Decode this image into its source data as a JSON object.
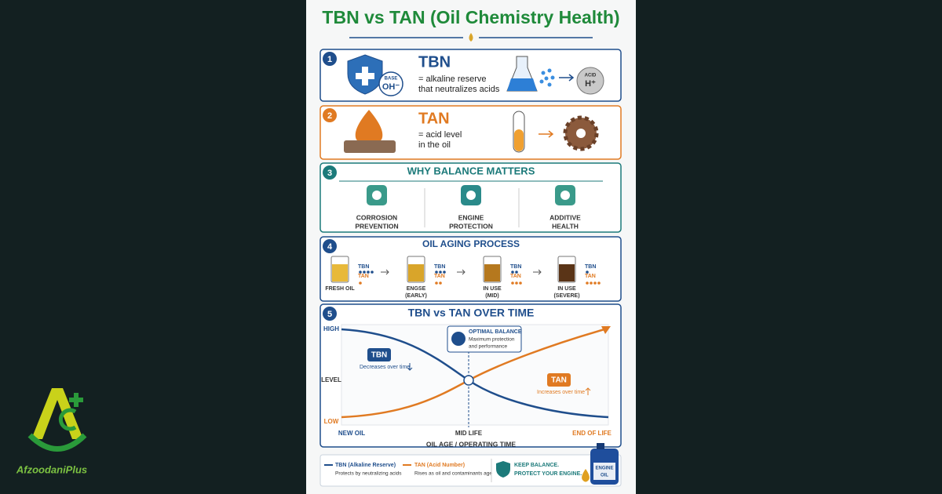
{
  "title": "TBN vs TAN (Oil Chemistry Health)",
  "tbn": {
    "number": "1",
    "heading": "TBN",
    "lines": [
      "= alkaline reserve",
      "that neutralizes acids"
    ],
    "base_badge": [
      "BASE",
      "OH⁻"
    ],
    "acid_badge": [
      "ACID",
      "H⁺"
    ]
  },
  "tan": {
    "number": "2",
    "heading": "TAN",
    "lines": [
      "= acid level",
      "in the oil"
    ]
  },
  "balance": {
    "number": "3",
    "heading": "WHY BALANCE MATTERS",
    "items": [
      [
        "CORROSION",
        "PREVENTION"
      ],
      [
        "ENGINE",
        "PROTECTION"
      ],
      [
        "ADDITIVE",
        "HEALTH"
      ]
    ]
  },
  "aging": {
    "number": "4",
    "heading": "OIL AGING PROCESS",
    "stages": [
      {
        "label": [
          "FRESH OIL"
        ],
        "tbn": "TBN",
        "tan": "TAN"
      },
      {
        "label": [
          "ENGSE",
          "(EARLY)"
        ],
        "tbn": "TBN",
        "tan": "TAN"
      },
      {
        "label": [
          "IN USE",
          "(MID)"
        ],
        "tbn": "TBN",
        "tan": "TAN"
      },
      {
        "label": [
          "IN USE",
          "(SEVERE)"
        ],
        "tbn": "TBN",
        "tan": "TAN"
      }
    ]
  },
  "chart": {
    "number": "5",
    "heading": "TBN vs TAN OVER TIME",
    "y_high": "HIGH",
    "y_low": "LOW",
    "y_label": "LEVEL",
    "x_labels": [
      "NEW OIL",
      "MID LIFE",
      "END OF LIFE"
    ],
    "x_title": "OIL AGE / OPERATING TIME",
    "optimal": [
      "OPTIMAL BALANCE",
      "Maximum protection",
      "and performance"
    ],
    "tbn_tag": "TBN",
    "tbn_note": "Decreases over time",
    "tan_tag": "TAN",
    "tan_note": "Increases over time"
  },
  "footer": {
    "tbn": [
      "TBN (Alkaline Reserve)",
      "Protects by neutralizing acids"
    ],
    "tan": [
      "TAN (Acid Number)",
      "Rises as oil and contaminants age"
    ],
    "cta": [
      "KEEP BALANCE.",
      "PROTECT YOUR ENGINE."
    ],
    "bottle": [
      "ENGINE",
      "OIL"
    ]
  },
  "logo": "AfzoodaniPlus"
}
